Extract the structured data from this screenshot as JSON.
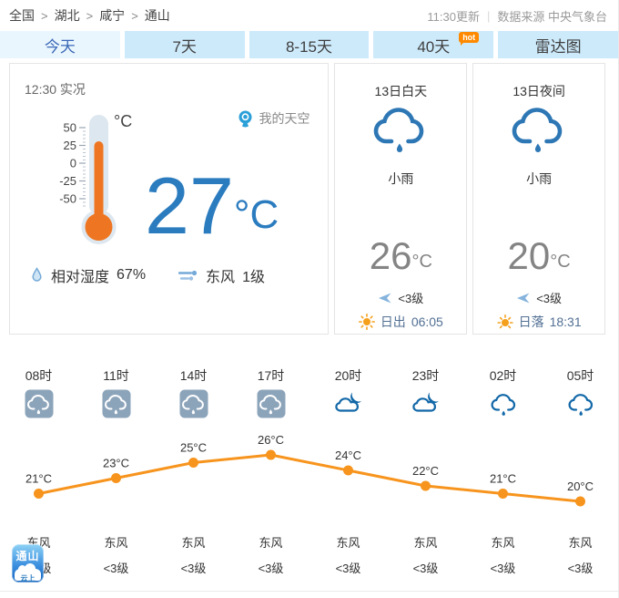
{
  "breadcrumb": {
    "items": [
      "全国",
      "湖北",
      "咸宁",
      "通山"
    ],
    "separator": ">"
  },
  "header": {
    "update_time": "11:30更新",
    "source": "数据来源 中央气象台"
  },
  "tabs": [
    {
      "label": "今天",
      "active": true,
      "badge": ""
    },
    {
      "label": "7天",
      "active": false,
      "badge": ""
    },
    {
      "label": "8-15天",
      "active": false,
      "badge": ""
    },
    {
      "label": "40天",
      "active": false,
      "badge": "hot"
    },
    {
      "label": "雷达图",
      "active": false,
      "badge": ""
    }
  ],
  "current": {
    "time_label": "12:30 实况",
    "my_sky_label": "我的天空",
    "temperature": "27",
    "unit": "°C",
    "scale_unit": "°C",
    "scale": [
      "50",
      "25",
      "0",
      "-25",
      "-50"
    ],
    "humidity_label": "相对湿度",
    "humidity_value": "67%",
    "wind_direction": "东风",
    "wind_level": "1级"
  },
  "day_panel": {
    "title": "13日白天",
    "condition": "小雨",
    "temp": "26",
    "unit": "°C",
    "wind_level": "<3级",
    "sun_label": "日出",
    "sun_time": "06:05"
  },
  "night_panel": {
    "title": "13日夜间",
    "condition": "小雨",
    "temp": "20",
    "unit": "°C",
    "wind_level": "<3级",
    "sun_label": "日落",
    "sun_time": "18:31"
  },
  "hourly": [
    {
      "time": "08时",
      "icon": "day-rain",
      "wind_direction": "东风",
      "wind_level": "<3级"
    },
    {
      "time": "11时",
      "icon": "day-rain",
      "wind_direction": "东风",
      "wind_level": "<3级"
    },
    {
      "time": "14时",
      "icon": "day-rain",
      "wind_direction": "东风",
      "wind_level": "<3级"
    },
    {
      "time": "17时",
      "icon": "day-rain",
      "wind_direction": "东风",
      "wind_level": "<3级"
    },
    {
      "time": "20时",
      "icon": "night-cloud",
      "wind_direction": "东风",
      "wind_level": "<3级"
    },
    {
      "time": "23时",
      "icon": "night-cloud",
      "wind_direction": "东风",
      "wind_level": "<3级"
    },
    {
      "time": "02时",
      "icon": "night-rain",
      "wind_direction": "东风",
      "wind_level": "<3级"
    },
    {
      "time": "05时",
      "icon": "night-rain",
      "wind_direction": "东风",
      "wind_level": "<3级"
    }
  ],
  "chart_data": {
    "type": "line",
    "x": [
      "08时",
      "11时",
      "14时",
      "17时",
      "20时",
      "23时",
      "02时",
      "05时"
    ],
    "values": [
      21,
      23,
      25,
      26,
      24,
      22,
      21,
      20
    ],
    "unit": "°C",
    "ylim": [
      19,
      27
    ],
    "grid": false,
    "legend": null,
    "line_color": "#f7941d",
    "label_color": "#333333"
  },
  "logo": {
    "line1": "通山",
    "line2": "云上"
  },
  "colors": {
    "accent_blue": "#2b7cbf",
    "tab_bg": "#cdeafb",
    "tab_active_bg": "#eaf6fe",
    "tab_active_text": "#3a68b6",
    "cloud_blue": "#2e77b5",
    "night_icon_blue": "#1268a8",
    "day_icon_bg": "#8ca4ba",
    "orange": "#f7941d",
    "thermo_orange": "#ee7622",
    "thermo_tube": "#dde7ef"
  }
}
